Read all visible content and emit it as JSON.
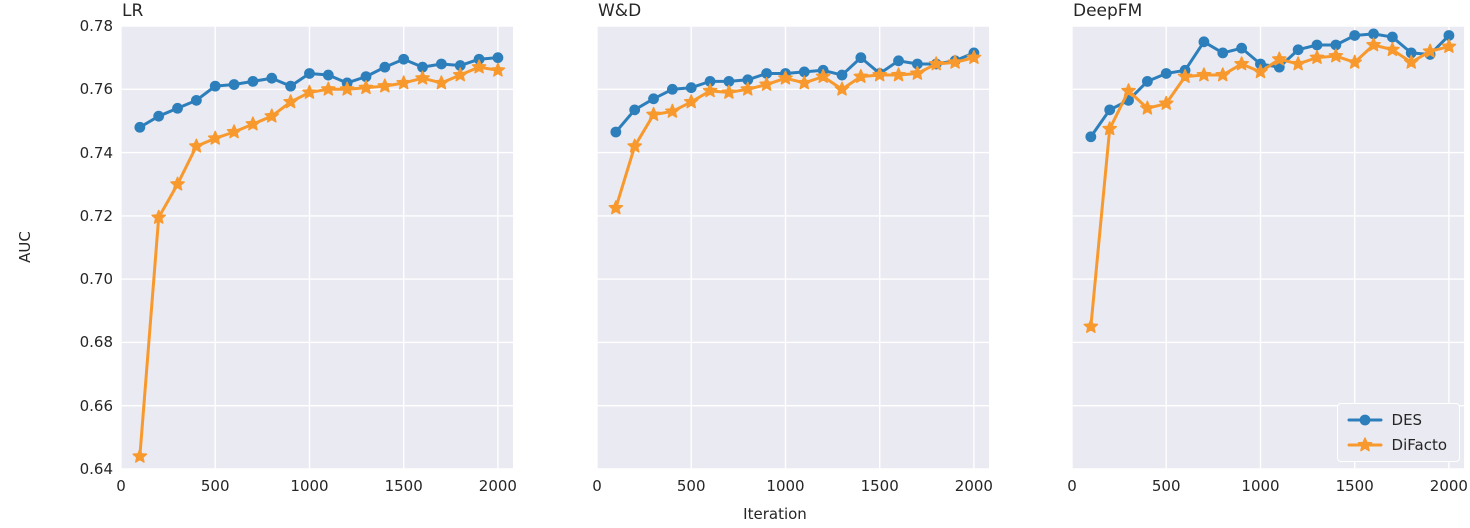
{
  "figure": {
    "ylabel": "AUC",
    "xlabel": "Iteration",
    "y_tick_labels": [
      "0.78",
      "0.76",
      "0.74",
      "0.72",
      "0.70",
      "0.68",
      "0.66",
      "0.64"
    ],
    "y_tick_values": [
      0.78,
      0.76,
      0.74,
      0.72,
      0.7,
      0.68,
      0.66,
      0.64
    ],
    "x_tick_labels": [
      "0",
      "500",
      "1000",
      "1500",
      "2000"
    ],
    "x_tick_values": [
      0,
      500,
      1000,
      1500,
      2000
    ],
    "ylim": [
      0.64,
      0.78
    ],
    "xlim": [
      0,
      2080
    ],
    "colors": {
      "des": "#2d7fbb",
      "difacto": "#f8992e",
      "plot_bg": "#eaeaf2",
      "grid": "#ffffff",
      "text": "#262626"
    },
    "legend": {
      "position": "lower right of DeepFM subplot",
      "items": [
        {
          "label": "DES",
          "marker": "circle"
        },
        {
          "label": "DiFacto",
          "marker": "star"
        }
      ]
    }
  },
  "chart_data": [
    {
      "type": "line",
      "title": "LR",
      "xlabel": "Iteration",
      "ylabel": "AUC",
      "xlim": [
        0,
        2080
      ],
      "ylim": [
        0.64,
        0.78
      ],
      "grid": true,
      "x": [
        100,
        200,
        300,
        400,
        500,
        600,
        700,
        800,
        900,
        1000,
        1100,
        1200,
        1300,
        1400,
        1500,
        1600,
        1700,
        1800,
        1900,
        2000
      ],
      "series": [
        {
          "name": "DES",
          "marker": "circle",
          "values": [
            0.748,
            0.7515,
            0.754,
            0.7565,
            0.761,
            0.7615,
            0.7625,
            0.7635,
            0.761,
            0.765,
            0.7645,
            0.762,
            0.764,
            0.767,
            0.7695,
            0.767,
            0.768,
            0.7675,
            0.7695,
            0.77
          ]
        },
        {
          "name": "DiFacto",
          "marker": "star",
          "values": [
            0.644,
            0.7195,
            0.73,
            0.742,
            0.7445,
            0.7465,
            0.749,
            0.7515,
            0.756,
            0.759,
            0.76,
            0.76,
            0.7605,
            0.761,
            0.762,
            0.7635,
            0.762,
            0.7645,
            0.767,
            0.766
          ]
        }
      ]
    },
    {
      "type": "line",
      "title": "W&D",
      "xlabel": "Iteration",
      "ylabel": "AUC",
      "xlim": [
        0,
        2080
      ],
      "ylim": [
        0.64,
        0.78
      ],
      "grid": true,
      "x": [
        100,
        200,
        300,
        400,
        500,
        600,
        700,
        800,
        900,
        1000,
        1100,
        1200,
        1300,
        1400,
        1500,
        1600,
        1700,
        1800,
        1900,
        2000
      ],
      "series": [
        {
          "name": "DES",
          "marker": "circle",
          "values": [
            0.7465,
            0.7535,
            0.757,
            0.76,
            0.7605,
            0.7625,
            0.7625,
            0.763,
            0.765,
            0.765,
            0.7655,
            0.766,
            0.7645,
            0.77,
            0.765,
            0.769,
            0.768,
            0.768,
            0.769,
            0.7715
          ]
        },
        {
          "name": "DiFacto",
          "marker": "star",
          "values": [
            0.7225,
            0.742,
            0.752,
            0.753,
            0.756,
            0.7595,
            0.759,
            0.76,
            0.7615,
            0.7635,
            0.762,
            0.764,
            0.76,
            0.764,
            0.7645,
            0.7645,
            0.765,
            0.768,
            0.7685,
            0.77
          ]
        }
      ]
    },
    {
      "type": "line",
      "title": "DeepFM",
      "xlabel": "Iteration",
      "ylabel": "AUC",
      "xlim": [
        0,
        2080
      ],
      "ylim": [
        0.64,
        0.78
      ],
      "grid": true,
      "legend_visible": true,
      "x": [
        100,
        200,
        300,
        400,
        500,
        600,
        700,
        800,
        900,
        1000,
        1100,
        1200,
        1300,
        1400,
        1500,
        1600,
        1700,
        1800,
        1900,
        2000
      ],
      "series": [
        {
          "name": "DES",
          "marker": "circle",
          "values": [
            0.745,
            0.7535,
            0.7565,
            0.7625,
            0.765,
            0.766,
            0.775,
            0.7715,
            0.773,
            0.768,
            0.767,
            0.7725,
            0.774,
            0.774,
            0.777,
            0.7775,
            0.7765,
            0.7715,
            0.771,
            0.777
          ]
        },
        {
          "name": "DiFacto",
          "marker": "star",
          "values": [
            0.685,
            0.7475,
            0.7595,
            0.754,
            0.7555,
            0.764,
            0.7645,
            0.7645,
            0.768,
            0.7655,
            0.7695,
            0.768,
            0.77,
            0.7705,
            0.7685,
            0.774,
            0.7725,
            0.7685,
            0.772,
            0.7735
          ]
        }
      ]
    }
  ]
}
